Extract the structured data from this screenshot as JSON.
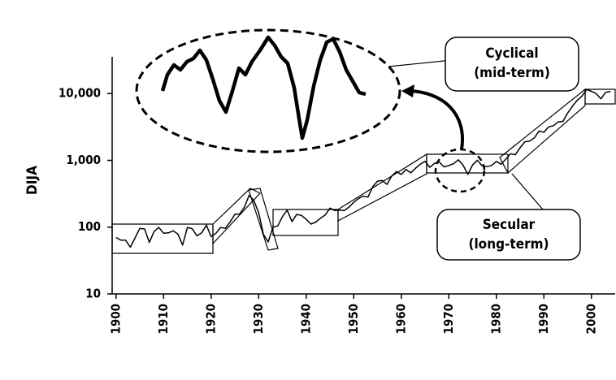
{
  "chart_data": {
    "type": "line",
    "y_label": "DIJA",
    "log_scale": true,
    "xlim": [
      1899,
      2005
    ],
    "ylim": [
      10,
      30000
    ],
    "xticks": [
      1900,
      1910,
      1920,
      1930,
      1940,
      1950,
      1960,
      1970,
      1980,
      1990,
      2000
    ],
    "yticks": [
      10,
      100,
      {
        "value": 1000,
        "label": "1,000"
      },
      {
        "value": 10000,
        "label": "10,000"
      }
    ],
    "annotations": [
      {
        "lines": [
          "Cyclical",
          "(mid-term)"
        ]
      },
      {
        "lines": [
          "Secular",
          "(long-term)"
        ]
      }
    ],
    "series": [
      {
        "name": "DJIA",
        "color": "#000000",
        "x": [
          1900,
          1901,
          1902,
          1903,
          1904,
          1905,
          1906,
          1907,
          1908,
          1909,
          1910,
          1911,
          1912,
          1913,
          1914,
          1915,
          1916,
          1917,
          1918,
          1919,
          1920,
          1921,
          1922,
          1923,
          1924,
          1925,
          1926,
          1927,
          1928,
          1929,
          1930,
          1931,
          1932,
          1933,
          1934,
          1935,
          1936,
          1937,
          1938,
          1939,
          1940,
          1941,
          1942,
          1943,
          1944,
          1945,
          1946,
          1947,
          1948,
          1949,
          1950,
          1951,
          1952,
          1953,
          1954,
          1955,
          1956,
          1957,
          1958,
          1959,
          1960,
          1961,
          1962,
          1963,
          1964,
          1965,
          1966,
          1967,
          1968,
          1969,
          1970,
          1971,
          1972,
          1973,
          1974,
          1975,
          1976,
          1977,
          1978,
          1979,
          1980,
          1981,
          1982,
          1983,
          1984,
          1985,
          1986,
          1987,
          1988,
          1989,
          1990,
          1991,
          1992,
          1993,
          1994,
          1995,
          1996,
          1997,
          1998,
          1999,
          2000,
          2001,
          2002,
          2003,
          2004
        ],
        "values": [
          70,
          64,
          64,
          50,
          69,
          96,
          94,
          59,
          86,
          99,
          81,
          82,
          88,
          79,
          54,
          99,
          95,
          74,
          82,
          107,
          72,
          81,
          99,
          96,
          120,
          156,
          157,
          200,
          300,
          248,
          165,
          78,
          60,
          100,
          104,
          144,
          180,
          121,
          155,
          150,
          131,
          111,
          119,
          136,
          152,
          193,
          177,
          181,
          177,
          200,
          235,
          269,
          292,
          281,
          404,
          488,
          499,
          436,
          584,
          679,
          616,
          731,
          652,
          763,
          874,
          969,
          786,
          905,
          944,
          800,
          839,
          890,
          1020,
          851,
          616,
          852,
          1005,
          831,
          805,
          839,
          964,
          875,
          1047,
          1259,
          1212,
          1547,
          1896,
          1939,
          2169,
          2753,
          2634,
          3169,
          3301,
          3754,
          3834,
          5117,
          6448,
          7908,
          9181,
          11497,
          10787,
          10022,
          8342,
          10454,
          10783
        ]
      }
    ]
  }
}
